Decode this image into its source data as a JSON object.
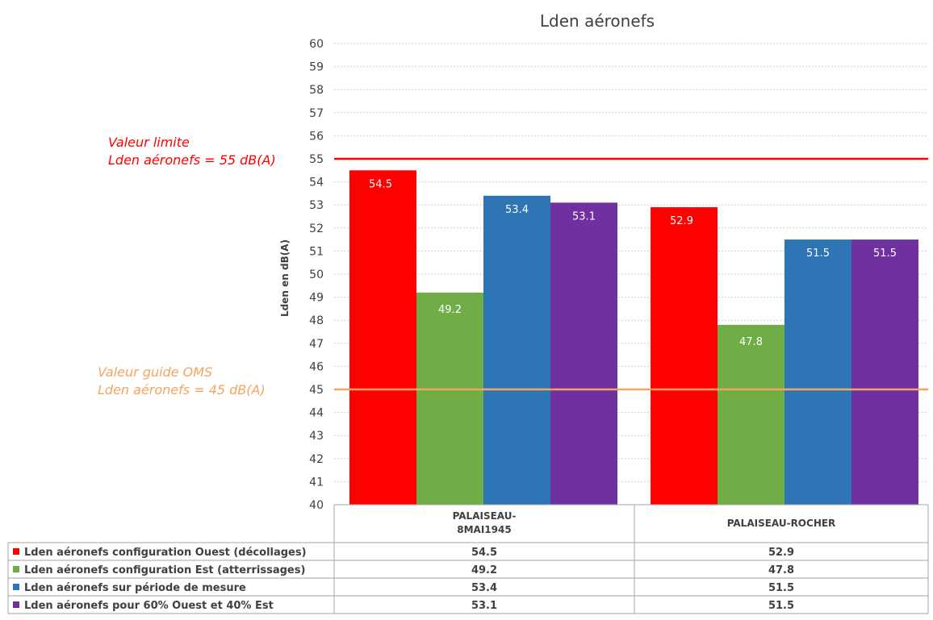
{
  "chart_data": {
    "type": "bar",
    "title": "Lden aéronefs",
    "ylabel": "Lden en dB(A)",
    "xlabel": "",
    "ylim": [
      40,
      60
    ],
    "yticks": [
      40,
      41,
      42,
      43,
      44,
      45,
      46,
      47,
      48,
      49,
      50,
      51,
      52,
      53,
      54,
      55,
      56,
      57,
      58,
      59,
      60
    ],
    "grid": true,
    "categories": [
      [
        "PALAISEAU-",
        "8MAI1945"
      ],
      [
        "PALAISEAU-ROCHER"
      ]
    ],
    "series": [
      {
        "name": "Lden aéronefs configuration Ouest (décollages)",
        "color": "#ff0000",
        "values": [
          54.5,
          52.9
        ]
      },
      {
        "name": "Lden aéronefs configuration Est (atterrissages)",
        "color": "#70ad47",
        "values": [
          49.2,
          47.8
        ]
      },
      {
        "name": "Lden aéronefs sur période de mesure",
        "color": "#2e75b6",
        "values": [
          53.4,
          51.5
        ]
      },
      {
        "name": "Lden aéronefs pour 60% Ouest et 40% Est",
        "color": "#7030a0",
        "values": [
          53.1,
          51.5
        ]
      }
    ],
    "reference_lines": [
      {
        "value": 55,
        "color": "#ff0000",
        "label": [
          "Valeur limite",
          "Lden aéronefs = 55 dB(A)"
        ]
      },
      {
        "value": 45,
        "color": "#f4a460",
        "label": [
          "Valeur guide OMS",
          "Lden aéronefs = 45 dB(A)"
        ]
      }
    ],
    "legend_placement": "bottom data table"
  }
}
